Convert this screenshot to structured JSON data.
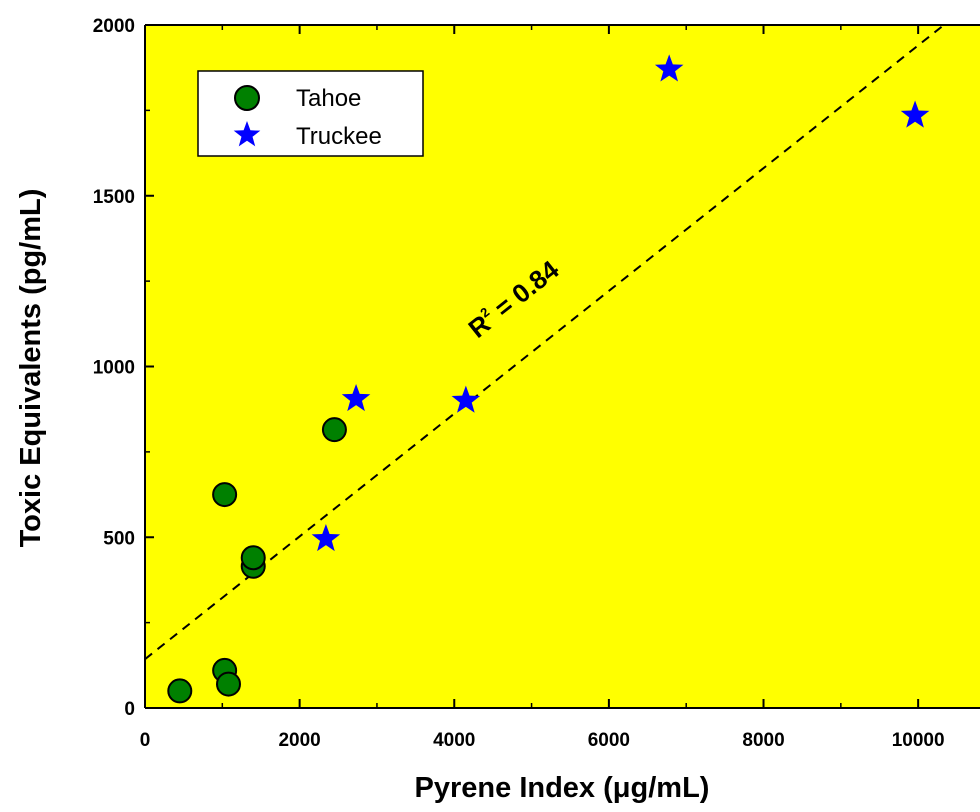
{
  "chart_data": {
    "type": "scatter",
    "xlabel_main": "Pyrene Index (",
    "xlabel_unit_greek": "μ",
    "xlabel_tail": "g/mL)",
    "ylabel": "Toxic Equivalents (pg/mL)",
    "xlim": [
      0,
      10800
    ],
    "ylim": [
      0,
      2000
    ],
    "xticks": [
      0,
      2000,
      4000,
      6000,
      8000,
      10000
    ],
    "xtick_labels": [
      "0",
      "2000",
      "4000",
      "6000",
      "8000",
      "10000"
    ],
    "yticks": [
      0,
      500,
      1000,
      1500,
      2000
    ],
    "ytick_labels": [
      "0",
      "500",
      "1000",
      "1500",
      "2000"
    ],
    "background_color": "#ffff00",
    "grid": false,
    "legend_position": "top-left",
    "series": [
      {
        "name": "Tahoe",
        "marker": "circle",
        "color": "#008000",
        "x": [
          450,
          1030,
          1080,
          1030,
          1400,
          1400,
          2450
        ],
        "y": [
          50,
          110,
          70,
          625,
          415,
          440,
          815
        ]
      },
      {
        "name": "Truckee",
        "marker": "star",
        "color": "#0000ff",
        "x": [
          2340,
          2730,
          4150,
          6780,
          9960
        ],
        "y": [
          495,
          905,
          900,
          1870,
          1735
        ]
      }
    ],
    "fit_line": {
      "style": "dashed",
      "color": "#000000",
      "x": [
        0,
        10800
      ],
      "y": [
        143,
        2084
      ]
    },
    "annotation": {
      "text_main": "R",
      "text_sup": "2",
      "text_tail": " = 0.84",
      "x": 4300,
      "y": 1080
    }
  }
}
